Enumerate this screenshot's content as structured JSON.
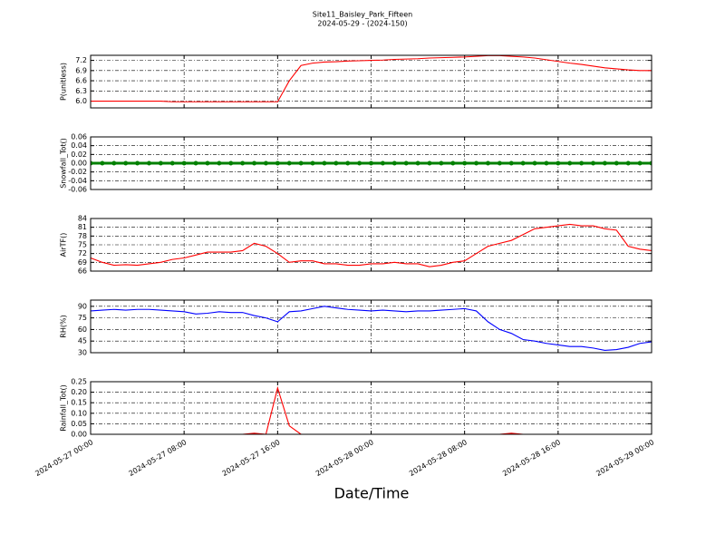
{
  "chart_data": {
    "type": "panels",
    "title": "Site11_Baisley_Park_Fifteen",
    "subtitle": "2024-05-29 - (2024-150)",
    "xlabel": "Date/Time",
    "xlim": [
      "2024-05-27 00:00",
      "2024-05-29 00:00"
    ],
    "xticks": [
      "2024-05-27 00:00",
      "2024-05-27 08:00",
      "2024-05-27 16:00",
      "2024-05-28 00:00",
      "2024-05-28 08:00",
      "2024-05-28 16:00",
      "2024-05-29 00:00"
    ],
    "grid": true,
    "x": [
      "2024-05-27 00:00",
      "2024-05-27 01:00",
      "2024-05-27 02:00",
      "2024-05-27 03:00",
      "2024-05-27 04:00",
      "2024-05-27 05:00",
      "2024-05-27 06:00",
      "2024-05-27 07:00",
      "2024-05-27 08:00",
      "2024-05-27 09:00",
      "2024-05-27 10:00",
      "2024-05-27 11:00",
      "2024-05-27 12:00",
      "2024-05-27 13:00",
      "2024-05-27 14:00",
      "2024-05-27 15:00",
      "2024-05-27 16:00",
      "2024-05-27 17:00",
      "2024-05-27 18:00",
      "2024-05-27 19:00",
      "2024-05-27 20:00",
      "2024-05-27 21:00",
      "2024-05-27 22:00",
      "2024-05-27 23:00",
      "2024-05-28 00:00",
      "2024-05-28 01:00",
      "2024-05-28 02:00",
      "2024-05-28 03:00",
      "2024-05-28 04:00",
      "2024-05-28 05:00",
      "2024-05-28 06:00",
      "2024-05-28 07:00",
      "2024-05-28 08:00",
      "2024-05-28 09:00",
      "2024-05-28 10:00",
      "2024-05-28 11:00",
      "2024-05-28 12:00",
      "2024-05-28 13:00",
      "2024-05-28 14:00",
      "2024-05-28 15:00",
      "2024-05-28 16:00",
      "2024-05-28 17:00",
      "2024-05-28 18:00",
      "2024-05-28 19:00",
      "2024-05-28 20:00",
      "2024-05-28 21:00",
      "2024-05-28 22:00",
      "2024-05-28 23:00",
      "2024-05-29 00:00"
    ],
    "panels": [
      {
        "type": "line",
        "ylabel": "P(unitless)",
        "ylim": [
          5.8,
          7.35
        ],
        "yticks": [
          {
            "value": 6,
            "label": "6.0"
          },
          6.3,
          6.6,
          6.9,
          7.2
        ],
        "series": [
          {
            "color": "#ff0000",
            "values": [
              6.0,
              6.0,
              6.0,
              6.0,
              6.0,
              6.0,
              6.0,
              5.98,
              5.98,
              5.98,
              5.98,
              5.98,
              5.98,
              5.98,
              5.98,
              5.98,
              5.98,
              6.6,
              7.05,
              7.12,
              7.15,
              7.16,
              7.18,
              7.19,
              7.2,
              7.21,
              7.23,
              7.24,
              7.25,
              7.27,
              7.28,
              7.29,
              7.3,
              7.32,
              7.34,
              7.34,
              7.32,
              7.3,
              7.27,
              7.22,
              7.17,
              7.12,
              7.08,
              7.03,
              6.98,
              6.95,
              6.92,
              6.9,
              6.9
            ]
          }
        ]
      },
      {
        "type": "scatter-line",
        "ylabel": "Snowfall_Tot()",
        "ylim": [
          -0.06,
          0.06
        ],
        "yticks": [
          -0.06,
          -0.04,
          -0.02,
          {
            "value": 0,
            "label": "0.00"
          },
          0.02,
          0.04,
          0.06
        ],
        "series": [
          {
            "color": "#008000",
            "values": [
              0,
              0,
              0,
              0,
              0,
              0,
              0,
              0,
              0,
              0,
              0,
              0,
              0,
              0,
              0,
              0,
              0,
              0,
              0,
              0,
              0,
              0,
              0,
              0,
              0,
              0,
              0,
              0,
              0,
              0,
              0,
              0,
              0,
              0,
              0,
              0,
              0,
              0,
              0,
              0,
              0,
              0,
              0,
              0,
              0,
              0,
              0,
              0,
              0
            ]
          }
        ]
      },
      {
        "type": "line",
        "ylabel": "AirTF()",
        "ylim": [
          66,
          84
        ],
        "yticks": [
          66,
          69,
          72,
          75,
          78,
          81,
          84
        ],
        "series": [
          {
            "color": "#ff0000",
            "values": [
              70.5,
              69,
              68,
              68.2,
              68,
              68.5,
              69,
              70,
              70.5,
              71.5,
              72.5,
              72.5,
              72.5,
              73,
              75.5,
              74.5,
              72,
              69,
              69.5,
              69.5,
              68.5,
              68.5,
              68,
              68,
              68.5,
              68.5,
              69,
              68.5,
              68.5,
              67.5,
              68,
              69,
              69.5,
              72,
              74.5,
              75.5,
              76.5,
              78.5,
              80.5,
              81,
              81.5,
              82,
              81.5,
              81.5,
              80.5,
              80,
              74.5,
              73.5,
              73
            ]
          }
        ]
      },
      {
        "type": "line",
        "ylabel": "RH(%)",
        "ylim": [
          30,
          98
        ],
        "yticks": [
          30,
          45,
          60,
          75,
          90
        ],
        "series": [
          {
            "color": "#0000ff",
            "values": [
              84,
              85,
              86,
              85,
              86,
              86,
              85,
              84,
              83,
              80,
              81,
              83,
              82,
              82,
              78,
              75,
              70,
              83,
              84,
              87,
              90,
              88,
              86,
              85,
              84,
              85,
              84,
              83,
              84,
              84,
              85,
              86,
              87,
              84,
              70,
              60,
              55,
              47,
              45,
              42,
              40,
              38,
              38,
              36,
              33,
              34,
              37,
              42,
              44
            ]
          }
        ]
      },
      {
        "type": "line",
        "ylabel": "Rainfall_Tot()",
        "ylim": [
          0,
          0.25
        ],
        "yticks": [
          {
            "value": 0,
            "label": "0.00"
          },
          0.05,
          {
            "value": 0.1,
            "label": "0.10"
          },
          0.15,
          {
            "value": 0.2,
            "label": "0.20"
          },
          0.25
        ],
        "series": [
          {
            "color": "#ff0000",
            "values": [
              0,
              0,
              0,
              0,
              0,
              0,
              0,
              0,
              0,
              0,
              0,
              0,
              0,
              0,
              0.005,
              0,
              0.22,
              0.04,
              0,
              0,
              0,
              0,
              0,
              0,
              0,
              0,
              0,
              0,
              0,
              0,
              0,
              0,
              0,
              0,
              0,
              0,
              0.005,
              0,
              0,
              0,
              0,
              0,
              0,
              0,
              0,
              0,
              0,
              0,
              0
            ]
          }
        ]
      }
    ]
  }
}
